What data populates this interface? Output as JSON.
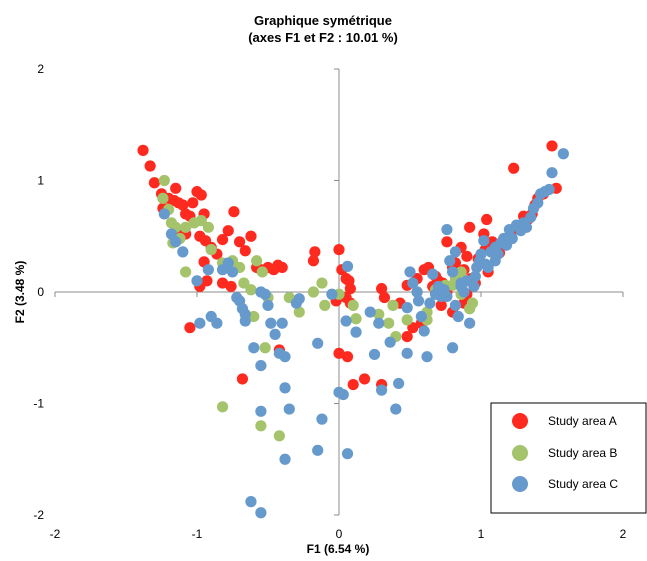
{
  "chart_data": {
    "type": "scatter",
    "title": "Graphique symétrique",
    "subtitle": "(axes F1 et F2 : 10.01 %)",
    "xlabel": "F1 (6.54 %)",
    "ylabel": "F2 (3.48 %)",
    "xlim": [
      -2,
      2
    ],
    "ylim": [
      -2,
      2
    ],
    "xticks": [
      -2,
      -1,
      0,
      1,
      2
    ],
    "yticks": [
      -2,
      -1,
      0,
      1,
      2
    ],
    "grid": false,
    "legend_position": "bottom-right",
    "series": [
      {
        "name": "Study area A",
        "color": "#ff2a1f",
        "points": [
          [
            -1.38,
            1.27
          ],
          [
            -1.33,
            1.13
          ],
          [
            -1.3,
            0.98
          ],
          [
            -1.25,
            0.88
          ],
          [
            -1.24,
            0.75
          ],
          [
            -1.2,
            0.84
          ],
          [
            -1.16,
            0.82
          ],
          [
            -1.13,
            0.8
          ],
          [
            -1.1,
            0.78
          ],
          [
            -1.08,
            0.7
          ],
          [
            -1.15,
            0.93
          ],
          [
            -1.12,
            0.55
          ],
          [
            -1.08,
            0.52
          ],
          [
            -1.05,
            0.68
          ],
          [
            -1.03,
            0.8
          ],
          [
            -1.0,
            0.9
          ],
          [
            -0.97,
            0.87
          ],
          [
            -0.95,
            0.7
          ],
          [
            -0.98,
            0.5
          ],
          [
            -0.94,
            0.46
          ],
          [
            -0.9,
            0.4
          ],
          [
            -0.86,
            0.34
          ],
          [
            -0.82,
            0.47
          ],
          [
            -0.78,
            0.55
          ],
          [
            -0.74,
            0.72
          ],
          [
            -0.7,
            0.45
          ],
          [
            -0.66,
            0.37
          ],
          [
            -0.62,
            0.5
          ],
          [
            -0.58,
            0.22
          ],
          [
            -0.55,
            0.2
          ],
          [
            -0.5,
            0.22
          ],
          [
            -0.46,
            0.2
          ],
          [
            -0.43,
            0.24
          ],
          [
            -0.4,
            0.22
          ],
          [
            -0.95,
            0.27
          ],
          [
            -0.93,
            0.1
          ],
          [
            -0.98,
            0.05
          ],
          [
            -0.82,
            0.08
          ],
          [
            -0.76,
            0.05
          ],
          [
            -1.05,
            -0.32
          ],
          [
            -0.68,
            -0.78
          ],
          [
            -0.42,
            -0.52
          ],
          [
            -0.17,
            0.36
          ],
          [
            -0.18,
            0.28
          ],
          [
            0.0,
            0.38
          ],
          [
            0.02,
            0.2
          ],
          [
            0.05,
            0.12
          ],
          [
            0.07,
            0.1
          ],
          [
            0.08,
            0.03
          ],
          [
            -0.02,
            -0.08
          ],
          [
            0.05,
            -0.05
          ],
          [
            0.08,
            -0.1
          ],
          [
            0.0,
            -0.55
          ],
          [
            0.06,
            -0.58
          ],
          [
            0.1,
            -0.83
          ],
          [
            0.18,
            -0.78
          ],
          [
            0.3,
            -0.83
          ],
          [
            0.3,
            0.03
          ],
          [
            0.32,
            -0.05
          ],
          [
            0.43,
            -0.1
          ],
          [
            0.48,
            -0.4
          ],
          [
            0.52,
            -0.32
          ],
          [
            0.58,
            -0.28
          ],
          [
            0.48,
            0.06
          ],
          [
            0.55,
            0.12
          ],
          [
            0.6,
            0.2
          ],
          [
            0.63,
            0.22
          ],
          [
            0.66,
            0.05
          ],
          [
            0.68,
            0.0
          ],
          [
            0.7,
            0.1
          ],
          [
            0.73,
            0.08
          ],
          [
            0.76,
            0.0
          ],
          [
            0.8,
            0.26
          ],
          [
            0.76,
            0.45
          ],
          [
            0.82,
            0.26
          ],
          [
            0.86,
            0.4
          ],
          [
            0.9,
            0.32
          ],
          [
            0.93,
            0.12
          ],
          [
            0.96,
            0.08
          ],
          [
            0.9,
            -0.02
          ],
          [
            0.88,
            -0.1
          ],
          [
            0.8,
            -0.18
          ],
          [
            0.72,
            -0.12
          ],
          [
            0.68,
            0.14
          ],
          [
            0.8,
            0.22
          ],
          [
            0.88,
            0.2
          ],
          [
            0.92,
            0.58
          ],
          [
            0.98,
            0.3
          ],
          [
            1.0,
            0.26
          ],
          [
            1.03,
            0.38
          ],
          [
            1.05,
            0.44
          ],
          [
            1.02,
            0.52
          ],
          [
            1.04,
            0.65
          ],
          [
            1.08,
            0.45
          ],
          [
            1.1,
            0.4
          ],
          [
            1.13,
            0.35
          ],
          [
            1.17,
            0.42
          ],
          [
            1.22,
            0.55
          ],
          [
            1.25,
            0.58
          ],
          [
            1.28,
            0.6
          ],
          [
            1.3,
            0.68
          ],
          [
            1.33,
            0.65
          ],
          [
            1.36,
            0.7
          ],
          [
            1.38,
            0.78
          ],
          [
            1.4,
            0.84
          ],
          [
            1.44,
            0.88
          ],
          [
            1.5,
            1.31
          ],
          [
            1.53,
            0.93
          ],
          [
            1.23,
            1.11
          ],
          [
            1.05,
            0.18
          ]
        ]
      },
      {
        "name": "Study area B",
        "color": "#a4c36b",
        "points": [
          [
            -1.23,
            1.0
          ],
          [
            -1.24,
            0.84
          ],
          [
            -1.2,
            0.74
          ],
          [
            -1.18,
            0.62
          ],
          [
            -1.15,
            0.58
          ],
          [
            -1.17,
            0.44
          ],
          [
            -1.12,
            0.48
          ],
          [
            -1.08,
            0.58
          ],
          [
            -1.02,
            0.62
          ],
          [
            -0.97,
            0.64
          ],
          [
            -0.92,
            0.58
          ],
          [
            -0.9,
            0.38
          ],
          [
            -0.82,
            0.26
          ],
          [
            -0.75,
            0.28
          ],
          [
            -0.7,
            0.22
          ],
          [
            -0.67,
            0.08
          ],
          [
            -0.62,
            0.02
          ],
          [
            -0.58,
            0.28
          ],
          [
            -0.54,
            0.18
          ],
          [
            -0.5,
            -0.05
          ],
          [
            -1.08,
            0.18
          ],
          [
            -0.35,
            -0.05
          ],
          [
            -0.28,
            -0.18
          ],
          [
            -0.18,
            0.0
          ],
          [
            -0.12,
            0.08
          ],
          [
            -0.1,
            -0.12
          ],
          [
            0.0,
            -0.02
          ],
          [
            0.1,
            -0.12
          ],
          [
            0.12,
            -0.24
          ],
          [
            0.28,
            -0.2
          ],
          [
            0.35,
            -0.28
          ],
          [
            0.4,
            -0.4
          ],
          [
            0.38,
            -0.12
          ],
          [
            0.48,
            -0.25
          ],
          [
            0.55,
            0.0
          ],
          [
            0.62,
            -0.25
          ],
          [
            0.68,
            0.02
          ],
          [
            0.75,
            0.06
          ],
          [
            0.8,
            0.06
          ],
          [
            0.82,
            0.12
          ],
          [
            0.86,
            0.05
          ],
          [
            0.9,
            0.1
          ],
          [
            0.86,
            -0.02
          ],
          [
            0.94,
            -0.1
          ],
          [
            0.92,
            -0.15
          ],
          [
            -0.82,
            -1.03
          ],
          [
            -0.55,
            -1.2
          ],
          [
            -0.52,
            -0.5
          ],
          [
            -0.42,
            -1.29
          ],
          [
            -0.6,
            -0.22
          ],
          [
            0.62,
            -0.18
          ],
          [
            0.86,
            0.18
          ]
        ]
      },
      {
        "name": "Study area C",
        "color": "#6699cc",
        "points": [
          [
            -1.23,
            0.7
          ],
          [
            -1.18,
            0.52
          ],
          [
            -1.15,
            0.45
          ],
          [
            -1.1,
            0.36
          ],
          [
            -1.0,
            0.1
          ],
          [
            -0.98,
            -0.28
          ],
          [
            -0.92,
            0.2
          ],
          [
            -0.9,
            -0.22
          ],
          [
            -0.86,
            -0.28
          ],
          [
            -0.82,
            0.2
          ],
          [
            -0.78,
            0.26
          ],
          [
            -0.75,
            0.18
          ],
          [
            -0.72,
            -0.05
          ],
          [
            -0.7,
            -0.08
          ],
          [
            -0.68,
            -0.15
          ],
          [
            -0.66,
            -0.26
          ],
          [
            -0.66,
            -0.2
          ],
          [
            -0.6,
            -0.5
          ],
          [
            -0.55,
            -0.66
          ],
          [
            -0.55,
            0.0
          ],
          [
            -0.52,
            -0.02
          ],
          [
            -0.5,
            -0.12
          ],
          [
            -0.48,
            -0.28
          ],
          [
            -0.45,
            -0.38
          ],
          [
            -0.42,
            -0.55
          ],
          [
            -0.38,
            -0.58
          ],
          [
            -0.4,
            -0.28
          ],
          [
            -0.3,
            -0.1
          ],
          [
            -0.28,
            -0.06
          ],
          [
            -0.38,
            -0.86
          ],
          [
            -0.35,
            -1.05
          ],
          [
            -0.55,
            -1.07
          ],
          [
            -0.62,
            -1.88
          ],
          [
            -0.55,
            -1.98
          ],
          [
            -0.38,
            -1.5
          ],
          [
            -0.15,
            -0.46
          ],
          [
            -0.15,
            -1.42
          ],
          [
            -0.12,
            -1.14
          ],
          [
            -0.05,
            -0.02
          ],
          [
            0.0,
            -0.9
          ],
          [
            0.03,
            -0.92
          ],
          [
            0.05,
            -0.26
          ],
          [
            0.06,
            0.23
          ],
          [
            0.12,
            -0.36
          ],
          [
            0.06,
            -1.45
          ],
          [
            0.22,
            -0.18
          ],
          [
            0.25,
            -0.56
          ],
          [
            0.28,
            -0.28
          ],
          [
            0.3,
            -0.88
          ],
          [
            0.36,
            -0.45
          ],
          [
            0.4,
            -1.05
          ],
          [
            0.42,
            -0.82
          ],
          [
            0.48,
            -0.55
          ],
          [
            0.48,
            -0.14
          ],
          [
            0.5,
            0.18
          ],
          [
            0.52,
            0.08
          ],
          [
            0.55,
            0.0
          ],
          [
            0.56,
            -0.08
          ],
          [
            0.58,
            -0.22
          ],
          [
            0.6,
            -0.35
          ],
          [
            0.62,
            -0.58
          ],
          [
            0.64,
            -0.1
          ],
          [
            0.66,
            0.16
          ],
          [
            0.68,
            -0.02
          ],
          [
            0.7,
            0.05
          ],
          [
            0.72,
            -0.04
          ],
          [
            0.74,
            0.02
          ],
          [
            0.76,
            -0.04
          ],
          [
            0.78,
            0.28
          ],
          [
            0.8,
            0.18
          ],
          [
            0.82,
            -0.12
          ],
          [
            0.84,
            -0.22
          ],
          [
            0.86,
            0.05
          ],
          [
            0.88,
            0.0
          ],
          [
            0.9,
            0.1
          ],
          [
            0.92,
            -0.28
          ],
          [
            0.95,
            0.05
          ],
          [
            0.97,
            0.22
          ],
          [
            0.99,
            0.28
          ],
          [
            1.0,
            0.34
          ],
          [
            1.02,
            0.46
          ],
          [
            1.03,
            0.25
          ],
          [
            1.05,
            0.22
          ],
          [
            1.07,
            0.36
          ],
          [
            1.1,
            0.4
          ],
          [
            1.12,
            0.34
          ],
          [
            1.14,
            0.44
          ],
          [
            1.16,
            0.48
          ],
          [
            1.18,
            0.42
          ],
          [
            1.2,
            0.56
          ],
          [
            1.22,
            0.48
          ],
          [
            1.25,
            0.6
          ],
          [
            1.28,
            0.55
          ],
          [
            1.3,
            0.62
          ],
          [
            1.32,
            0.58
          ],
          [
            1.35,
            0.67
          ],
          [
            1.37,
            0.75
          ],
          [
            1.4,
            0.8
          ],
          [
            1.42,
            0.88
          ],
          [
            1.45,
            0.9
          ],
          [
            1.48,
            0.92
          ],
          [
            1.5,
            1.07
          ],
          [
            1.58,
            1.24
          ],
          [
            0.8,
            -0.5
          ],
          [
            0.76,
            0.56
          ],
          [
            0.82,
            0.36
          ],
          [
            0.86,
            0.08
          ],
          [
            1.1,
            0.28
          ],
          [
            0.96,
            0.14
          ]
        ]
      }
    ]
  }
}
